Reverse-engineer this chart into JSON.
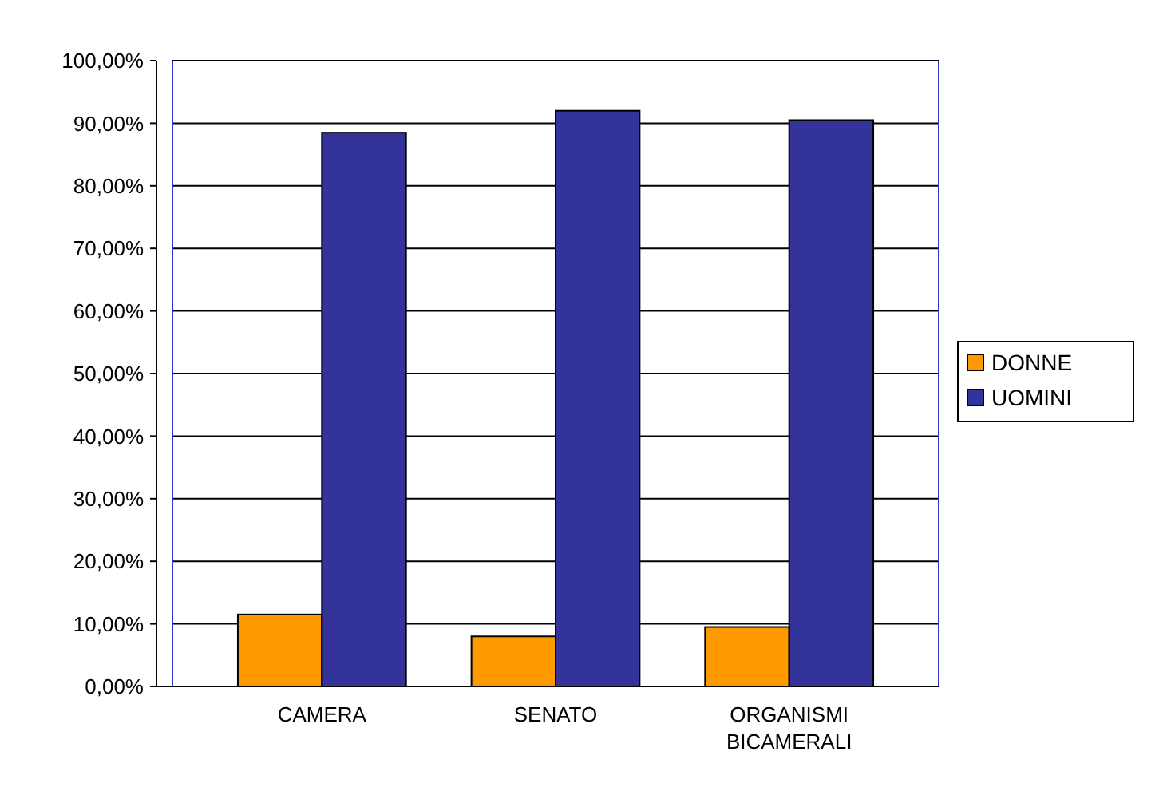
{
  "chart_data": {
    "type": "bar",
    "categories": [
      "CAMERA",
      "SENATO",
      "ORGANISMI BICAMERALI"
    ],
    "series": [
      {
        "name": "DONNE",
        "color": "#ff9900",
        "values": [
          11.5,
          8,
          9.5
        ]
      },
      {
        "name": "UOMINI",
        "color": "#333399",
        "values": [
          88.5,
          92,
          90.5
        ]
      }
    ],
    "ylim": [
      0,
      100
    ],
    "yticks": [
      {
        "value": 0,
        "label": "0,00%"
      },
      {
        "value": 10,
        "label": "10,00%"
      },
      {
        "value": 20,
        "label": "20,00%"
      },
      {
        "value": 30,
        "label": "30,00%"
      },
      {
        "value": 40,
        "label": "40,00%"
      },
      {
        "value": 50,
        "label": "50,00%"
      },
      {
        "value": 60,
        "label": "60,00%"
      },
      {
        "value": 70,
        "label": "70,00%"
      },
      {
        "value": 80,
        "label": "80,00%"
      },
      {
        "value": 90,
        "label": "90,00%"
      },
      {
        "value": 100,
        "label": "100,00%"
      }
    ],
    "grid": "y",
    "legend": "right"
  }
}
